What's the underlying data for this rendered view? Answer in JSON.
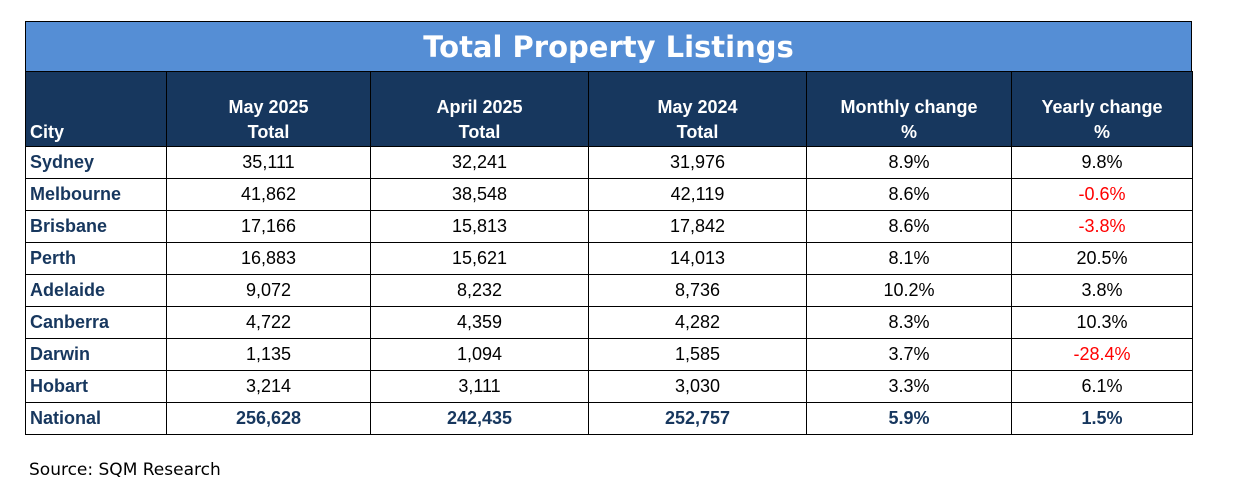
{
  "title": "Total Property Listings",
  "headers": [
    {
      "line1": "",
      "line2": "City"
    },
    {
      "line1": "May 2025",
      "line2": "Total"
    },
    {
      "line1": "April 2025",
      "line2": "Total"
    },
    {
      "line1": "May 2024",
      "line2": "Total"
    },
    {
      "line1": "Monthly change",
      "line2": "%"
    },
    {
      "line1": "Yearly change",
      "line2": "%"
    }
  ],
  "rows": [
    {
      "city": "Sydney",
      "may2025": "35,111",
      "apr2025": "32,241",
      "may2024": "31,976",
      "monthly": "8.9%",
      "yearly": "9.8%",
      "yearly_negative": false
    },
    {
      "city": "Melbourne",
      "may2025": "41,862",
      "apr2025": "38,548",
      "may2024": "42,119",
      "monthly": "8.6%",
      "yearly": "-0.6%",
      "yearly_negative": true
    },
    {
      "city": "Brisbane",
      "may2025": "17,166",
      "apr2025": "15,813",
      "may2024": "17,842",
      "monthly": "8.6%",
      "yearly": "-3.8%",
      "yearly_negative": true
    },
    {
      "city": "Perth",
      "may2025": "16,883",
      "apr2025": "15,621",
      "may2024": "14,013",
      "monthly": "8.1%",
      "yearly": "20.5%",
      "yearly_negative": false
    },
    {
      "city": "Adelaide",
      "may2025": "9,072",
      "apr2025": "8,232",
      "may2024": "8,736",
      "monthly": "10.2%",
      "yearly": "3.8%",
      "yearly_negative": false
    },
    {
      "city": "Canberra",
      "may2025": "4,722",
      "apr2025": "4,359",
      "may2024": "4,282",
      "monthly": "8.3%",
      "yearly": "10.3%",
      "yearly_negative": false
    },
    {
      "city": "Darwin",
      "may2025": "1,135",
      "apr2025": "1,094",
      "may2024": "1,585",
      "monthly": "3.7%",
      "yearly": "-28.4%",
      "yearly_negative": true
    },
    {
      "city": "Hobart",
      "may2025": "3,214",
      "apr2025": "3,111",
      "may2024": "3,030",
      "monthly": "3.3%",
      "yearly": "6.1%",
      "yearly_negative": false
    }
  ],
  "national": {
    "city": "National",
    "may2025": "256,628",
    "apr2025": "242,435",
    "may2024": "252,757",
    "monthly": "5.9%",
    "yearly": "1.5%"
  },
  "source": "Source: SQM Research",
  "colors": {
    "title_bg": "#558ED5",
    "header_bg": "#17375E",
    "city_text": "#17375E",
    "negative": "#FF0000"
  }
}
